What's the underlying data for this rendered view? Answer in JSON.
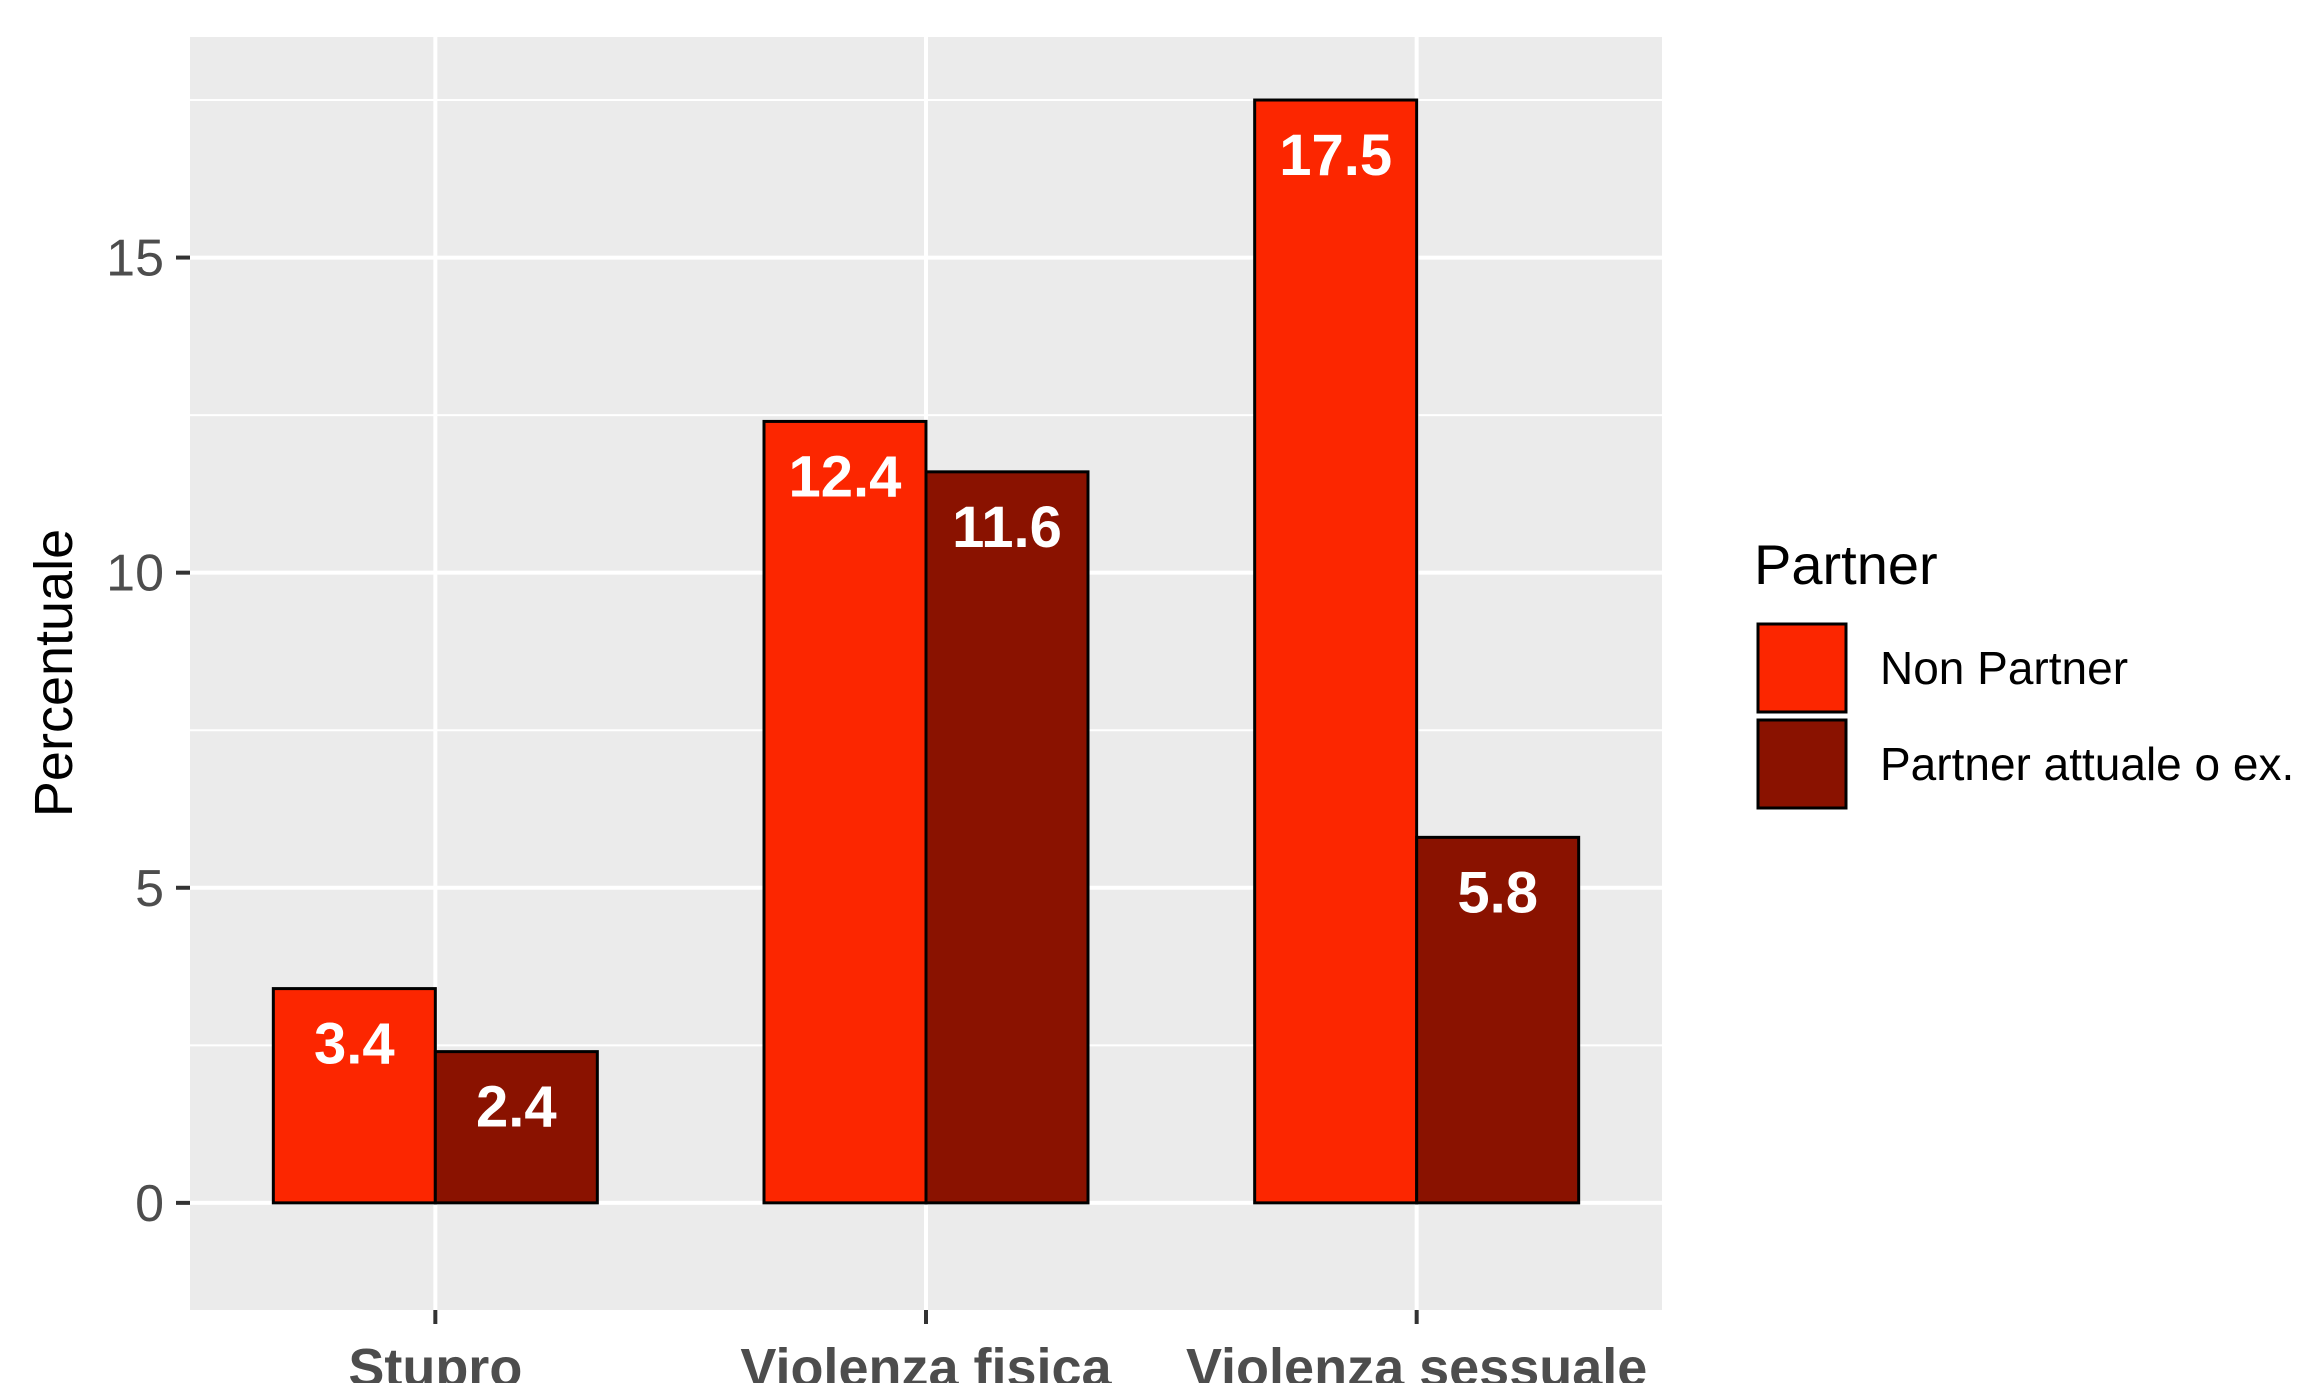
{
  "chart_data": {
    "type": "bar",
    "title": "",
    "xlabel": "",
    "ylabel": "Percentuale",
    "ylim": [
      -1.7,
      18.5
    ],
    "yticks": [
      0,
      5,
      10,
      15
    ],
    "grid": true,
    "legend_position": "right",
    "categories": [
      "Stupro",
      "Violenza fisica",
      "Violenza sessuale"
    ],
    "legend_title": "Partner",
    "series": [
      {
        "name": "Non Partner",
        "color": "#fc2600",
        "values": [
          3.4,
          12.4,
          17.5
        ]
      },
      {
        "name": "Partner attuale o ex.",
        "color": "#8a1200",
        "values": [
          2.4,
          11.6,
          5.8
        ]
      }
    ],
    "data_labels": [
      [
        "3.4",
        "12.4",
        "17.5"
      ],
      [
        "2.4",
        "11.6",
        "5.8"
      ]
    ],
    "colors": {
      "panel_background": "#ebebeb",
      "gridline": "#ffffff",
      "bar_outline": "#000000",
      "axis_text": "#4d4d4d",
      "label_text": "#ffffff"
    }
  }
}
